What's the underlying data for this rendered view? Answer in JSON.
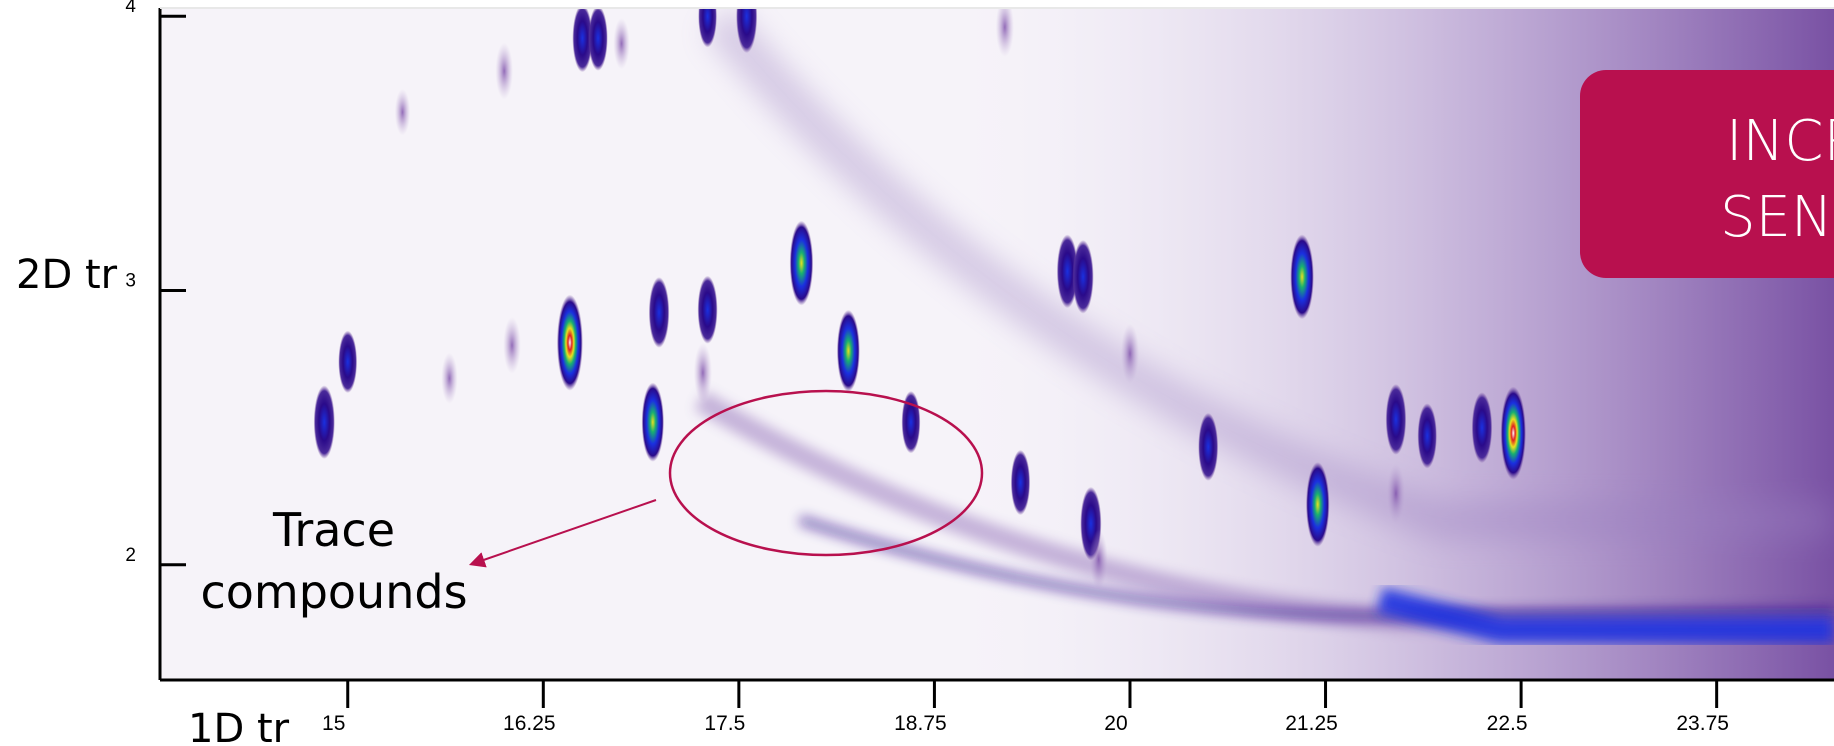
{
  "chart_data": {
    "type": "heatmap",
    "title": "",
    "xlabel": "1D tr",
    "ylabel": "2D tr",
    "xlim": [
      13.8,
      24.5
    ],
    "ylim": [
      1.58,
      4.03
    ],
    "x_ticks": [
      {
        "value": 15,
        "label": "15"
      },
      {
        "value": 16.25,
        "label": "16.25"
      },
      {
        "value": 17.5,
        "label": "17.5"
      },
      {
        "value": 18.75,
        "label": "18.75"
      },
      {
        "value": 20,
        "label": "20"
      },
      {
        "value": 21.25,
        "label": "21.25"
      },
      {
        "value": 22.5,
        "label": "22.5"
      },
      {
        "value": 23.75,
        "label": "23.75"
      }
    ],
    "y_ticks": [
      {
        "value": 2,
        "label": "2"
      },
      {
        "value": 3,
        "label": "3"
      },
      {
        "value": 4,
        "label": "4"
      }
    ],
    "colorscale": [
      "#ffffff",
      "#d8cce6",
      "#7a4aa8",
      "#2a0a8a",
      "#1a30e0",
      "#18b070",
      "#e8e020",
      "#e02020",
      "#ffffff"
    ],
    "peaks": [
      {
        "x": 14.85,
        "y": 2.52,
        "intensity": 0.6
      },
      {
        "x": 15.0,
        "y": 2.74,
        "intensity": 0.4
      },
      {
        "x": 15.65,
        "y": 2.68,
        "intensity": 0.2
      },
      {
        "x": 15.35,
        "y": 3.65,
        "intensity": 0.12
      },
      {
        "x": 16.0,
        "y": 3.8,
        "intensity": 0.3
      },
      {
        "x": 16.05,
        "y": 2.8,
        "intensity": 0.3
      },
      {
        "x": 16.42,
        "y": 2.81,
        "intensity": 1.0
      },
      {
        "x": 16.5,
        "y": 3.92,
        "intensity": 0.5
      },
      {
        "x": 16.6,
        "y": 3.92,
        "intensity": 0.45
      },
      {
        "x": 16.75,
        "y": 3.9,
        "intensity": 0.2
      },
      {
        "x": 16.95,
        "y": 2.52,
        "intensity": 0.7
      },
      {
        "x": 16.99,
        "y": 2.92,
        "intensity": 0.55
      },
      {
        "x": 17.3,
        "y": 2.93,
        "intensity": 0.5
      },
      {
        "x": 17.27,
        "y": 2.7,
        "intensity": 0.35
      },
      {
        "x": 17.3,
        "y": 4.0,
        "intensity": 0.4
      },
      {
        "x": 17.55,
        "y": 4.0,
        "intensity": 0.6
      },
      {
        "x": 17.9,
        "y": 3.1,
        "intensity": 0.8
      },
      {
        "x": 18.2,
        "y": 2.78,
        "intensity": 0.75
      },
      {
        "x": 18.6,
        "y": 2.52,
        "intensity": 0.4
      },
      {
        "x": 19.2,
        "y": 3.96,
        "intensity": 0.35
      },
      {
        "x": 19.3,
        "y": 2.3,
        "intensity": 0.45
      },
      {
        "x": 19.6,
        "y": 3.07,
        "intensity": 0.6
      },
      {
        "x": 19.7,
        "y": 3.05,
        "intensity": 0.6
      },
      {
        "x": 19.75,
        "y": 2.15,
        "intensity": 0.6
      },
      {
        "x": 19.8,
        "y": 2.02,
        "intensity": 0.35
      },
      {
        "x": 20.0,
        "y": 2.77,
        "intensity": 0.35
      },
      {
        "x": 20.5,
        "y": 2.43,
        "intensity": 0.5
      },
      {
        "x": 21.1,
        "y": 3.05,
        "intensity": 0.8
      },
      {
        "x": 21.2,
        "y": 2.22,
        "intensity": 0.8
      },
      {
        "x": 21.7,
        "y": 2.53,
        "intensity": 0.55
      },
      {
        "x": 21.7,
        "y": 2.26,
        "intensity": 0.35
      },
      {
        "x": 21.9,
        "y": 2.47,
        "intensity": 0.45
      },
      {
        "x": 22.25,
        "y": 2.5,
        "intensity": 0.55
      },
      {
        "x": 22.45,
        "y": 2.48,
        "intensity": 0.95
      }
    ],
    "annotations": [
      {
        "text_lines": [
          "Trace",
          "compounds"
        ]
      }
    ],
    "callout": {
      "lines": [
        "INCR",
        "SEN"
      ],
      "color": "#b8104e"
    }
  },
  "colors": {
    "axis": "#000000",
    "ellipse": "#b8104e",
    "arrow": "#b8104e",
    "background_tint": "#6b3f9a"
  }
}
